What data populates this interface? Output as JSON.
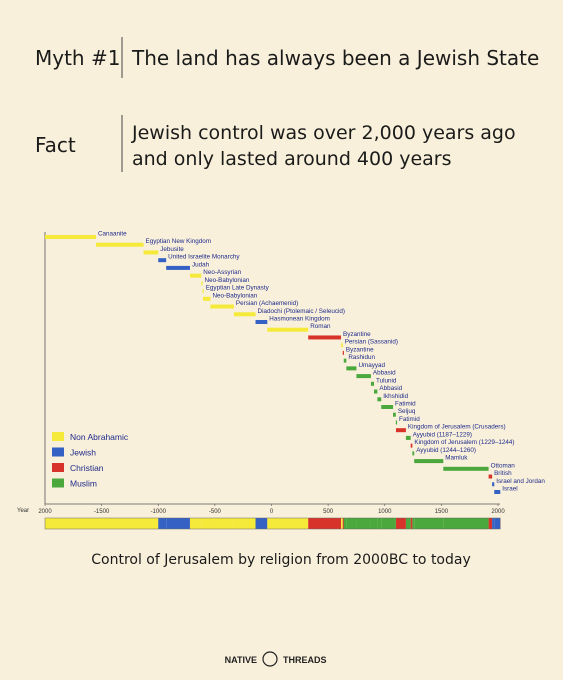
{
  "header": {
    "myth_label": "Myth #1",
    "myth_text": "The land has always been a Jewish State",
    "fact_label": "Fact",
    "fact_lines": [
      "Jewish control was over 2,000 years ago",
      "and only lasted around 400 years"
    ]
  },
  "chart_data": {
    "type": "gantt",
    "x_label": "Year",
    "xlim": [
      -2000,
      2000
    ],
    "xticks": [
      {
        "value": -2000,
        "label": "2000"
      },
      -1500,
      -1000,
      -500,
      0,
      500,
      1000,
      1500,
      2000
    ],
    "groups": [
      {
        "name": "Non Abrahamic",
        "color": "#f5e93a"
      },
      {
        "name": "Jewish",
        "color": "#3560c4"
      },
      {
        "name": "Christian",
        "color": "#d8332a"
      },
      {
        "name": "Muslim",
        "color": "#4aa83c"
      }
    ],
    "tasks": [
      {
        "label": "Canaanite",
        "start": -2000,
        "end": -1550,
        "group": 0
      },
      {
        "label": "Egyptian New Kingdom",
        "start": -1550,
        "end": -1130,
        "group": 0
      },
      {
        "label": "Jebusite",
        "start": -1130,
        "end": -1000,
        "group": 0
      },
      {
        "label": "United Israelite Monarchy",
        "start": -1000,
        "end": -930,
        "group": 1
      },
      {
        "label": "Judah",
        "start": -930,
        "end": -720,
        "group": 1
      },
      {
        "label": "Neo-Assyrian",
        "start": -720,
        "end": -620,
        "group": 0
      },
      {
        "label": "Neo-Babylonian",
        "start": -620,
        "end": -609,
        "group": 0
      },
      {
        "label": "Egyptian Late Dynasty",
        "start": -609,
        "end": -605,
        "group": 0
      },
      {
        "label": "Neo-Babylonian",
        "start": -605,
        "end": -539,
        "group": 0
      },
      {
        "label": "Persian (Achaemenid)",
        "start": -539,
        "end": -332,
        "group": 0
      },
      {
        "label": "Diadochi (Ptolemaic / Seleucid)",
        "start": -332,
        "end": -141,
        "group": 0
      },
      {
        "label": "Hasmonean Kingdom",
        "start": -141,
        "end": -37,
        "group": 1
      },
      {
        "label": "Roman",
        "start": -37,
        "end": 324,
        "group": 0
      },
      {
        "label": "Byzantine",
        "start": 324,
        "end": 614,
        "group": 2
      },
      {
        "label": "Persian (Sassanid)",
        "start": 614,
        "end": 629,
        "group": 0
      },
      {
        "label": "Byzantine",
        "start": 629,
        "end": 638,
        "group": 2
      },
      {
        "label": "Rashidun",
        "start": 638,
        "end": 661,
        "group": 3
      },
      {
        "label": "Umayyad",
        "start": 661,
        "end": 750,
        "group": 3
      },
      {
        "label": "Abbasid",
        "start": 750,
        "end": 878,
        "group": 3
      },
      {
        "label": "Tulunid",
        "start": 878,
        "end": 905,
        "group": 3
      },
      {
        "label": "Abbasid",
        "start": 905,
        "end": 935,
        "group": 3
      },
      {
        "label": "Ikhshidid",
        "start": 935,
        "end": 969,
        "group": 3
      },
      {
        "label": "Fatimid",
        "start": 969,
        "end": 1073,
        "group": 3
      },
      {
        "label": "Seljuq",
        "start": 1073,
        "end": 1098,
        "group": 3
      },
      {
        "label": "Fatimid",
        "start": 1098,
        "end": 1099,
        "group": 3
      },
      {
        "label": "Kingdom of Jerusalem (Crusaders)",
        "start": 1099,
        "end": 1187,
        "group": 2
      },
      {
        "label": "Ayyubid (1187–1229)",
        "start": 1187,
        "end": 1229,
        "group": 3
      },
      {
        "label": "Kingdom of Jerusalem (1229–1244)",
        "start": 1229,
        "end": 1244,
        "group": 2
      },
      {
        "label": "Ayyubid (1244–1260)",
        "start": 1244,
        "end": 1260,
        "group": 3
      },
      {
        "label": "Mamluk",
        "start": 1260,
        "end": 1517,
        "group": 3
      },
      {
        "label": "Ottoman",
        "start": 1517,
        "end": 1917,
        "group": 3
      },
      {
        "label": "British",
        "start": 1917,
        "end": 1948,
        "group": 2
      },
      {
        "label": "Israel and Jordan",
        "start": 1948,
        "end": 1967,
        "group": 1
      },
      {
        "label": "Israel",
        "start": 1967,
        "end": 2020,
        "group": 1
      }
    ],
    "caption": "Control of Jerusalem by religion from 2000BC to today"
  },
  "footer": {
    "brand_left": "NATIVE",
    "brand_right": "THREADS"
  }
}
